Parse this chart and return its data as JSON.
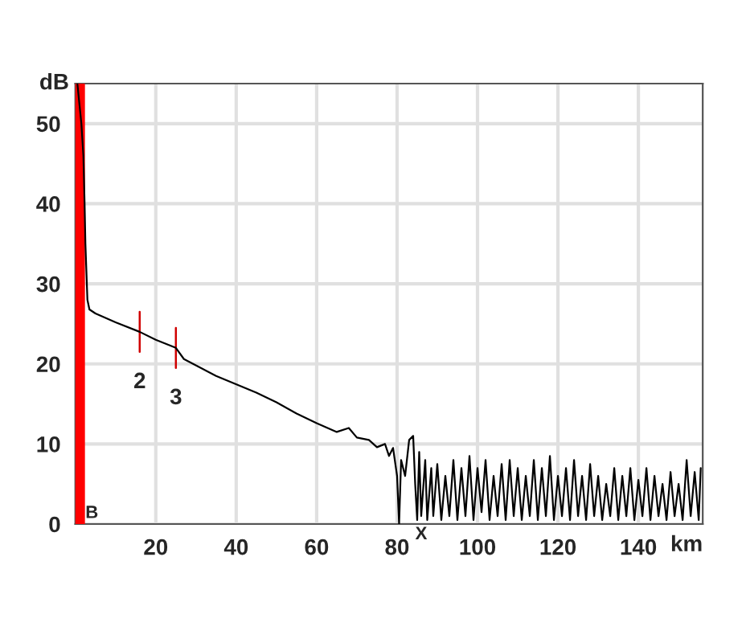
{
  "chart_data": {
    "type": "line",
    "xlabel": "km",
    "ylabel": "dB",
    "xlim": [
      0,
      156
    ],
    "xticks": [
      20,
      40,
      60,
      80,
      100,
      120,
      140
    ],
    "ylim": [
      0,
      55
    ],
    "yticks": [
      0,
      10,
      20,
      30,
      40,
      50
    ],
    "grid": true,
    "series": [
      {
        "color": "#000000",
        "x": [
          0.5,
          1.5,
          2,
          2.3,
          2.5,
          3,
          3.5,
          5,
          10,
          16,
          20,
          25,
          27,
          35,
          45,
          50,
          55,
          60,
          65,
          68,
          70,
          73,
          75,
          77,
          78,
          79,
          80,
          80.5,
          81,
          82,
          83,
          84,
          84.5,
          85,
          85.5,
          86,
          87,
          87.5,
          88.5,
          89,
          90,
          91,
          92,
          93,
          94,
          95,
          96,
          97,
          98,
          99,
          100,
          101,
          102,
          103,
          104,
          105,
          106,
          107,
          108,
          109,
          110,
          111,
          112,
          113,
          114,
          115,
          116,
          117,
          118,
          119,
          120,
          121,
          122,
          123,
          124,
          125,
          126,
          127,
          128,
          129,
          130,
          131,
          132,
          133,
          134,
          135,
          136,
          137,
          138,
          139,
          140,
          141,
          142,
          143,
          144,
          145,
          146,
          147,
          148,
          149,
          150,
          151,
          152,
          153,
          154,
          155,
          155.5
        ],
        "values": [
          55,
          50,
          46,
          40,
          35,
          28,
          26.8,
          26.3,
          25.2,
          24,
          23,
          22,
          20.6,
          18.5,
          16.4,
          15.2,
          13.8,
          12.6,
          11.5,
          12,
          10.8,
          10.5,
          9.6,
          10,
          8.5,
          9.5,
          6,
          0,
          8,
          6,
          10.5,
          11,
          5,
          0.5,
          9,
          1,
          8,
          0.5,
          7,
          1,
          7.5,
          0.5,
          6,
          1,
          8,
          0.5,
          7,
          1,
          8.5,
          0.5,
          7,
          1.5,
          8,
          0.5,
          6,
          1,
          7.5,
          0.5,
          8,
          1,
          7,
          0.5,
          6,
          1,
          8,
          0.5,
          7,
          1,
          8.5,
          0.5,
          6,
          1,
          7,
          0.5,
          8,
          1,
          6,
          0.5,
          7.5,
          1,
          6,
          0.5,
          5,
          1,
          7,
          0.5,
          6,
          1,
          7,
          0.5,
          5.5,
          1,
          7,
          0.5,
          6,
          1,
          5,
          0.5,
          6.5,
          1,
          5,
          0.5,
          8,
          1,
          6.5,
          0.5,
          7
        ]
      }
    ],
    "ref_lines": [
      {
        "axis": "x",
        "value": 1,
        "color": "#ff0000"
      }
    ],
    "annotations": [
      {
        "text": "2",
        "x": 16,
        "y": 24
      },
      {
        "text": "3",
        "x": 25,
        "y": 22
      },
      {
        "text": "B",
        "x": 2.5,
        "y": 0
      },
      {
        "text": "X",
        "x": 86,
        "y": 0
      }
    ]
  }
}
